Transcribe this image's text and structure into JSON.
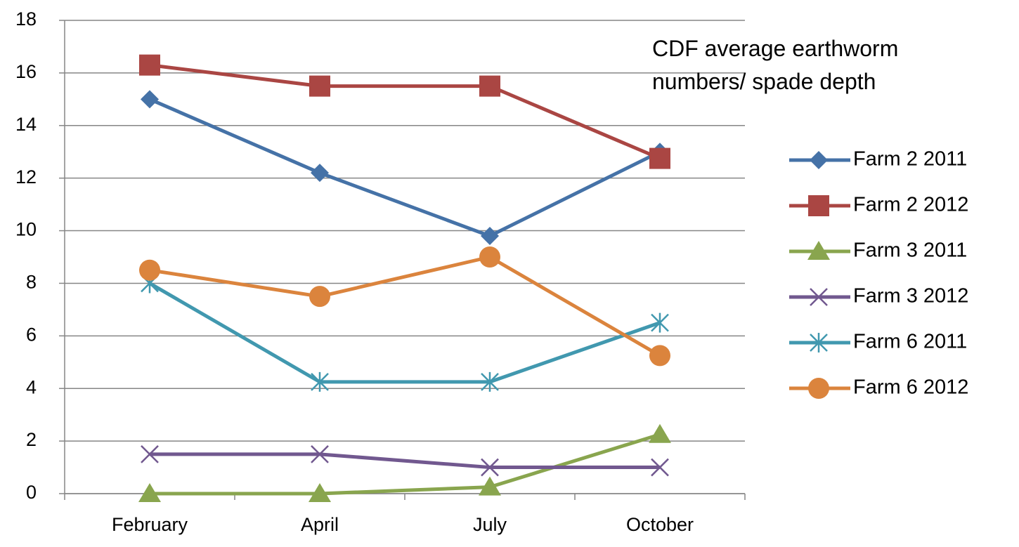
{
  "chart_data": {
    "type": "line",
    "title": "CDF average earthworm numbers/ spade depth",
    "categories": [
      "February",
      "April",
      "July",
      "October"
    ],
    "series": [
      {
        "name": "Farm 2 2011",
        "color": "#4572a7",
        "marker": "diamond",
        "values": [
          15,
          12.2,
          9.8,
          13
        ]
      },
      {
        "name": "Farm 2 2012",
        "color": "#aa4643",
        "marker": "square",
        "values": [
          16.3,
          15.5,
          15.5,
          12.75
        ]
      },
      {
        "name": "Farm 3 2011",
        "color": "#89a54e",
        "marker": "triangle",
        "values": [
          0,
          0,
          0.25,
          2.25
        ]
      },
      {
        "name": "Farm 3 2012",
        "color": "#71588f",
        "marker": "x",
        "values": [
          1.5,
          1.5,
          1,
          1
        ]
      },
      {
        "name": "Farm 6 2011",
        "color": "#4198af",
        "marker": "star",
        "values": [
          8,
          4.25,
          4.25,
          6.5
        ]
      },
      {
        "name": "Farm 6 2012",
        "color": "#db843d",
        "marker": "circle",
        "values": [
          8.5,
          7.5,
          9,
          5.25
        ]
      }
    ],
    "ylim": [
      0,
      18
    ],
    "yticks": [
      0,
      2,
      4,
      6,
      8,
      10,
      12,
      14,
      16,
      18
    ],
    "grid": true,
    "legend": "right"
  }
}
